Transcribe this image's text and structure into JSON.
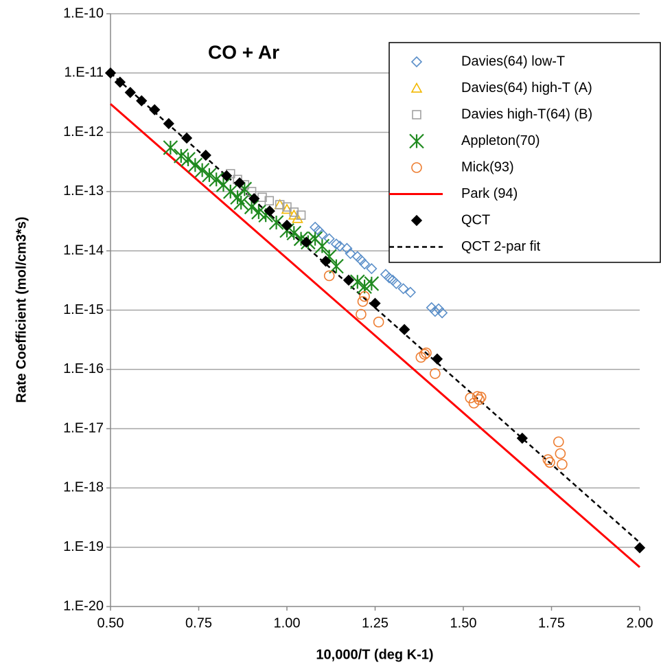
{
  "chart_data": {
    "type": "scatter",
    "title": "CO + Ar",
    "x_label": "10,000/T (deg K-1)",
    "y_label": "Rate Coefficient (mol/cm3*s)",
    "xlim": [
      0.5,
      2.0
    ],
    "xticks": [
      {
        "value": 0.5,
        "label": "0.50"
      },
      0.75,
      {
        "value": 1.0,
        "label": "1.00"
      },
      1.25,
      {
        "value": 1.5,
        "label": "1.50"
      },
      1.75,
      {
        "value": 2.0,
        "label": "2.00"
      }
    ],
    "ylim": [
      1e-20,
      1e-10
    ],
    "ylog": true,
    "grid": true,
    "yticks": [
      {
        "value": 1e-20,
        "label": "1.E-20"
      },
      {
        "value": 1e-19,
        "label": "1.E-19"
      },
      {
        "value": 1e-18,
        "label": "1.E-18"
      },
      {
        "value": 1e-17,
        "label": "1.E-17"
      },
      {
        "value": 1e-16,
        "label": "1.E-16"
      },
      {
        "value": 1e-15,
        "label": "1.E-15"
      },
      {
        "value": 1e-14,
        "label": "1.E-14"
      },
      {
        "value": 1e-13,
        "label": "1.E-13"
      },
      {
        "value": 1e-12,
        "label": "1.E-12"
      },
      {
        "value": 1e-11,
        "label": "1.E-11"
      },
      {
        "value": 1e-10,
        "label": "1.E-10"
      }
    ],
    "legend": "top-right",
    "series": [
      {
        "name": "Davies(64) low-T",
        "color": "#5b8fc9",
        "marker": "diamond",
        "x": [
          1.08,
          1.09,
          1.1,
          1.12,
          1.14,
          1.15,
          1.17,
          1.18,
          1.2,
          1.21,
          1.22,
          1.24,
          1.28,
          1.29,
          1.3,
          1.31,
          1.33,
          1.35,
          1.41,
          1.42,
          1.43,
          1.44
        ],
        "values": [
          2.5e-14,
          2.2e-14,
          1.9e-14,
          1.6e-14,
          1.3e-14,
          1.2e-14,
          1.1e-14,
          9e-15,
          8e-15,
          7e-15,
          6e-15,
          5e-15,
          4e-15,
          3.5e-15,
          3.2e-15,
          2.8e-15,
          2.3e-15,
          2e-15,
          1.1e-15,
          9.5e-16,
          1.05e-15,
          9e-16
        ]
      },
      {
        "name": "Davies(64) high-T (A)",
        "color": "#f2b800",
        "marker": "triangle",
        "x": [
          0.98,
          1.0,
          1.02,
          1.03
        ],
        "values": [
          6e-14,
          5e-14,
          4e-14,
          3.5e-14
        ]
      },
      {
        "name": "Davies high-T(64) (B)",
        "color": "#a0a0a0",
        "marker": "square",
        "x": [
          0.84,
          0.86,
          0.88,
          0.9,
          0.93,
          0.95,
          0.98,
          1.0,
          1.02,
          1.04
        ],
        "values": [
          2e-13,
          1.6e-13,
          1.3e-13,
          1e-13,
          8e-14,
          7e-14,
          6e-14,
          5.5e-14,
          4.5e-14,
          4e-14
        ]
      },
      {
        "name": "Appleton(70)",
        "color": "#1f8a1f",
        "marker": "asterisk",
        "x": [
          0.67,
          0.7,
          0.72,
          0.74,
          0.76,
          0.78,
          0.8,
          0.82,
          0.84,
          0.86,
          0.87,
          0.88,
          0.9,
          0.92,
          0.94,
          0.97,
          1.0,
          1.02,
          1.04,
          1.06,
          1.08,
          1.1,
          1.12,
          1.14,
          1.2,
          1.22,
          1.24
        ],
        "values": [
          5.5e-13,
          4e-13,
          3.5e-13,
          2.8e-13,
          2.3e-13,
          1.9e-13,
          1.6e-13,
          1.3e-13,
          1e-13,
          8e-14,
          6.5e-14,
          1.1e-13,
          5.5e-14,
          4.5e-14,
          4e-14,
          3e-14,
          2.2e-14,
          2e-14,
          1.6e-14,
          1.4e-14,
          1.6e-14,
          1.2e-14,
          8e-15,
          5.5e-15,
          3e-15,
          2.5e-15,
          2.8e-15
        ]
      },
      {
        "name": "Mick(93)",
        "color": "#ed7d31",
        "marker": "circle",
        "x": [
          1.12,
          1.21,
          1.215,
          1.22,
          1.26,
          1.38,
          1.39,
          1.395,
          1.42,
          1.52,
          1.53,
          1.54,
          1.545,
          1.55,
          1.74,
          1.745,
          1.77,
          1.775,
          1.78
        ],
        "values": [
          3.8e-15,
          8.5e-16,
          1.4e-15,
          1.7e-15,
          6.3e-16,
          1.6e-16,
          1.8e-16,
          1.9e-16,
          8.5e-17,
          3.3e-17,
          2.7e-17,
          3.5e-17,
          3.1e-17,
          3.4e-17,
          3e-18,
          2.7e-18,
          6e-18,
          3.8e-18,
          2.5e-18
        ]
      },
      {
        "name": "Park (94)",
        "color": "#ff0000",
        "marker": "line",
        "line_style": "solid",
        "x": [
          0.5,
          2.0
        ],
        "values": [
          3e-12,
          4.6e-20
        ]
      },
      {
        "name": "QCT",
        "color": "#000000",
        "marker": "filled-diamond",
        "x": [
          0.5,
          0.527,
          0.556,
          0.588,
          0.625,
          0.665,
          0.716,
          0.77,
          0.829,
          0.866,
          0.907,
          0.951,
          1.0,
          1.055,
          1.11,
          1.175,
          1.25,
          1.333,
          1.426,
          1.667,
          2.0
        ],
        "values": [
          1e-11,
          7e-12,
          4.7e-12,
          3.4e-12,
          2.4e-12,
          1.4e-12,
          8e-13,
          4.1e-13,
          1.85e-13,
          1.4e-13,
          7.6e-14,
          4.7e-14,
          2.7e-14,
          1.4e-14,
          6.7e-15,
          3.2e-15,
          1.3e-15,
          4.7e-16,
          1.5e-16,
          6.9e-18,
          9.8e-20
        ]
      },
      {
        "name": "QCT 2-par fit",
        "color": "#000000",
        "marker": "line",
        "line_style": "dashed",
        "x": [
          0.5,
          2.0
        ],
        "values": [
          1e-11,
          1.2e-19
        ]
      }
    ]
  }
}
